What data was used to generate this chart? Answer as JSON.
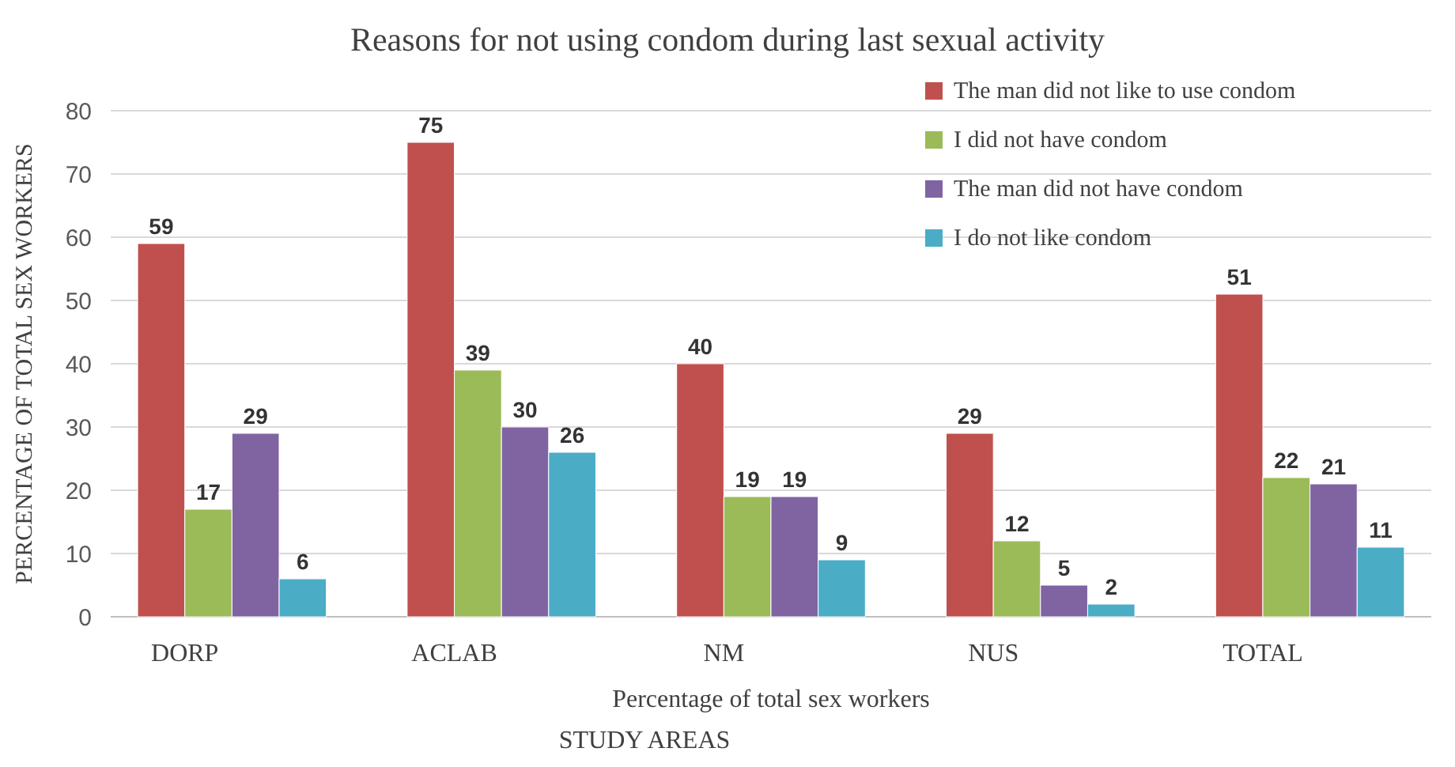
{
  "chart_data": {
    "type": "bar",
    "title": "Reasons for not using condom during last sexual activity",
    "xlabel": "Percentage of total sex workers",
    "ylabel": "PERCENTAGE OF TOTAL SEX WORKERS",
    "annotations": [
      "STUDY AREAS"
    ],
    "categories": [
      "DORP",
      "ACLAB",
      "NM",
      "NUS",
      "TOTAL"
    ],
    "series": [
      {
        "name": "The man did not like to use condom",
        "color": "#c0504d",
        "values": [
          59,
          75,
          40,
          29,
          51
        ]
      },
      {
        "name": "I did not have condom",
        "color": "#9bbb59",
        "values": [
          17,
          39,
          19,
          12,
          22
        ]
      },
      {
        "name": "The man did not have condom",
        "color": "#8064a2",
        "values": [
          29,
          30,
          19,
          5,
          21
        ]
      },
      {
        "name": "I do not like condom",
        "color": "#4bacc6",
        "values": [
          6,
          26,
          9,
          2,
          11
        ]
      }
    ],
    "ylim": [
      0,
      80
    ],
    "yticks": [
      0,
      10,
      20,
      30,
      40,
      50,
      60,
      70,
      80
    ],
    "grid": "y",
    "legend": "top right",
    "data_labels": true
  }
}
